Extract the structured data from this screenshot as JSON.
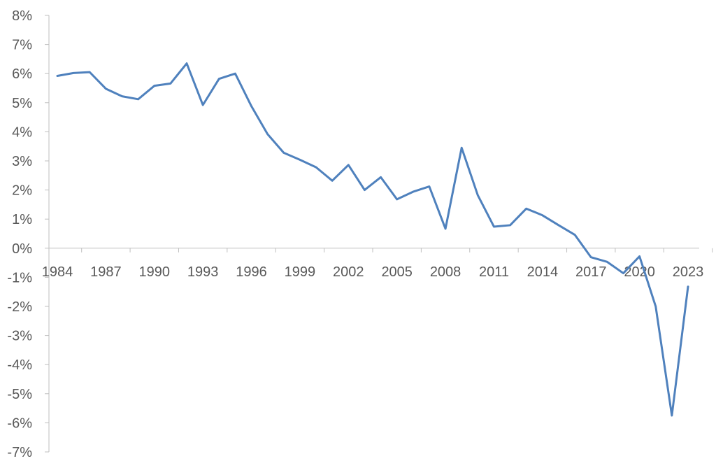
{
  "chart_data": {
    "type": "line",
    "title": "",
    "xlabel": "",
    "ylabel": "",
    "x": [
      1984,
      1985,
      1986,
      1987,
      1988,
      1989,
      1990,
      1991,
      1992,
      1993,
      1994,
      1995,
      1996,
      1997,
      1998,
      1999,
      2000,
      2001,
      2002,
      2003,
      2004,
      2005,
      2006,
      2007,
      2008,
      2009,
      2010,
      2011,
      2012,
      2013,
      2014,
      2015,
      2016,
      2017,
      2018,
      2019,
      2020,
      2021,
      2022,
      2023
    ],
    "series": [
      {
        "name": "",
        "color": "#4f81bd",
        "values": [
          5.92,
          6.02,
          6.05,
          5.48,
          5.22,
          5.12,
          5.58,
          5.66,
          6.35,
          4.92,
          5.82,
          6.0,
          4.88,
          3.92,
          3.28,
          3.04,
          2.78,
          2.32,
          2.86,
          2.0,
          2.44,
          1.68,
          1.94,
          2.12,
          0.67,
          3.45,
          1.82,
          0.74,
          0.79,
          1.36,
          1.13,
          0.79,
          0.46,
          -0.31,
          -0.47,
          -0.86,
          -0.28,
          -2.0,
          -5.75,
          -1.32
        ]
      }
    ],
    "ylim": [
      -7,
      8
    ],
    "yticks": [
      -7,
      -6,
      -5,
      -4,
      -3,
      -2,
      -1,
      0,
      1,
      2,
      3,
      4,
      5,
      6,
      7,
      8
    ],
    "ytick_labels": [
      "-7%",
      "-6%",
      "-5%",
      "-4%",
      "-3%",
      "-2%",
      "-1%",
      "0%",
      "1%",
      "2%",
      "3%",
      "4%",
      "5%",
      "6%",
      "7%",
      "8%"
    ],
    "xticks": [
      1984,
      1987,
      1990,
      1993,
      1996,
      1999,
      2002,
      2005,
      2008,
      2011,
      2014,
      2017,
      2020,
      2023
    ],
    "xtick_labels": [
      "1984",
      "1987",
      "1990",
      "1993",
      "1996",
      "1999",
      "2002",
      "2005",
      "2008",
      "2011",
      "2014",
      "2017",
      "2020",
      "2023"
    ],
    "grid": false,
    "legend": "none"
  }
}
